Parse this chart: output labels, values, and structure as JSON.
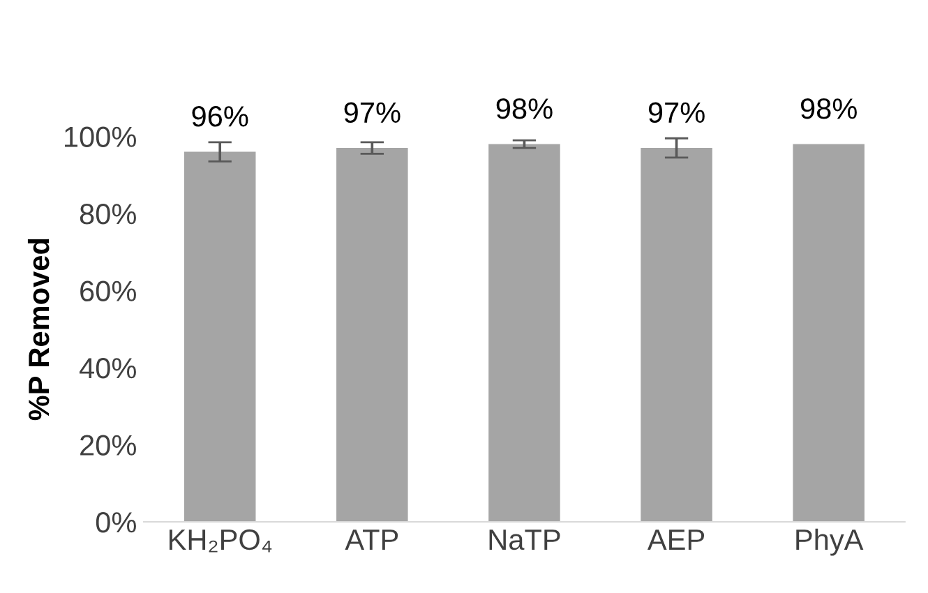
{
  "chart_data": {
    "type": "bar",
    "ylabel": "%P Removed",
    "categories": [
      "KH₂PO₄",
      "ATP",
      "NaTP",
      "AEP",
      "PhyA"
    ],
    "values": [
      96,
      97,
      98,
      97,
      98
    ],
    "color": "#a5a5a5",
    "errors": [
      2.5,
      1.5,
      1,
      2.5,
      null
    ],
    "value_labels": [
      "96%",
      "97%",
      "98%",
      "97%",
      "98%"
    ],
    "ylim": [
      0,
      100
    ],
    "yticks": [
      {
        "value": 0,
        "label": "0%"
      },
      {
        "value": 20,
        "label": "20%"
      },
      {
        "value": 40,
        "label": "40%"
      },
      {
        "value": 60,
        "label": "60%"
      },
      {
        "value": 80,
        "label": "80%"
      },
      {
        "value": 100,
        "label": "100%"
      }
    ],
    "grid": false,
    "legend": false
  }
}
